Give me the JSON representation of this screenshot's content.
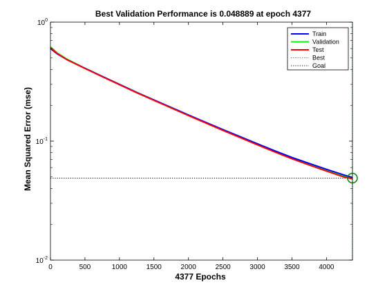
{
  "chart_data": {
    "type": "line",
    "title": "Best Validation Performance is 0.048889 at epoch 4377",
    "xlabel": "4377 Epochs",
    "ylabel": "Mean Squared Error  (mse)",
    "xlim": [
      0,
      4377
    ],
    "ylim": [
      0.01,
      1
    ],
    "yscale": "log",
    "x_ticks": [
      0,
      500,
      1000,
      1500,
      2000,
      2500,
      3000,
      3500,
      4000
    ],
    "y_ticks": [
      {
        "value": 0.01,
        "base": "10",
        "exp": "-2"
      },
      {
        "value": 0.1,
        "base": "10",
        "exp": "-1"
      },
      {
        "value": 1,
        "base": "10",
        "exp": "0"
      }
    ],
    "grid": false,
    "legend_position": "top-right",
    "series": [
      {
        "name": "Train",
        "color": "#0000ff",
        "style": "solid",
        "x": [
          0,
          100,
          250,
          500,
          750,
          1000,
          1250,
          1500,
          1750,
          2000,
          2250,
          2500,
          2750,
          3000,
          3250,
          3500,
          3750,
          4000,
          4250,
          4377
        ],
        "y": [
          0.6,
          0.54,
          0.48,
          0.41,
          0.35,
          0.3,
          0.257,
          0.222,
          0.192,
          0.166,
          0.144,
          0.125,
          0.109,
          0.095,
          0.083,
          0.073,
          0.065,
          0.058,
          0.052,
          0.0495
        ]
      },
      {
        "name": "Validation",
        "color": "#00ff00",
        "style": "solid",
        "x": [
          0,
          100,
          250,
          500,
          750,
          1000,
          1250,
          1500,
          1750,
          2000,
          2250,
          2500,
          2750,
          3000,
          3250,
          3500,
          3750,
          4000,
          4250,
          4377
        ],
        "y": [
          0.62,
          0.55,
          0.485,
          0.41,
          0.35,
          0.3,
          0.257,
          0.221,
          0.191,
          0.165,
          0.143,
          0.124,
          0.108,
          0.094,
          0.082,
          0.072,
          0.064,
          0.057,
          0.051,
          0.048889
        ]
      },
      {
        "name": "Test",
        "color": "#ff0000",
        "style": "solid",
        "x": [
          0,
          100,
          250,
          500,
          750,
          1000,
          1250,
          1500,
          1750,
          2000,
          2250,
          2500,
          2750,
          3000,
          3250,
          3500,
          3750,
          4000,
          4250,
          4377
        ],
        "y": [
          0.61,
          0.545,
          0.48,
          0.408,
          0.348,
          0.298,
          0.255,
          0.22,
          0.19,
          0.164,
          0.142,
          0.123,
          0.107,
          0.093,
          0.081,
          0.071,
          0.063,
          0.056,
          0.05,
          0.0482
        ]
      },
      {
        "name": "Best",
        "color": "#00a000",
        "style": "dotted",
        "kind": "vertical",
        "x_value": 4377
      },
      {
        "name": "Goal",
        "color": "#000000",
        "style": "dotted",
        "kind": "horizontal"
      }
    ],
    "best_point": {
      "x": 4377,
      "y": 0.048889
    },
    "best_color": "#007f00"
  }
}
